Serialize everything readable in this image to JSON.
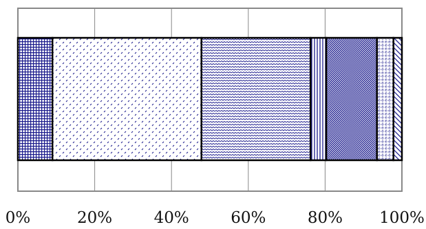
{
  "chart_data": {
    "type": "bar",
    "orientation": "horizontal",
    "stacked": true,
    "percent_stacked": true,
    "title": "",
    "xlabel": "",
    "ylabel": "",
    "xlim": [
      0,
      100
    ],
    "x_ticks": [
      "0%",
      "20%",
      "40%",
      "60%",
      "80%",
      "100%"
    ],
    "x_tick_values": [
      0,
      20,
      40,
      60,
      80,
      100
    ],
    "grid": {
      "vertical": true,
      "horizontal": false
    },
    "legend": "none",
    "segments": [
      {
        "value": 9,
        "pattern": "grid"
      },
      {
        "value": 38.8,
        "pattern": "dashes"
      },
      {
        "value": 28.4,
        "pattern": "waves"
      },
      {
        "value": 4.1,
        "pattern": "vertical-lines"
      },
      {
        "value": 13.2,
        "pattern": "dense-crosshatch"
      },
      {
        "value": 4.3,
        "pattern": "dotted-grid"
      },
      {
        "value": 2.2,
        "pattern": "diagonal-stripes"
      }
    ],
    "colors": {
      "pattern": "#1a1a8c",
      "bar_fill": "#ffffff",
      "bar_edge": "#000000",
      "grid": "#888888"
    }
  }
}
